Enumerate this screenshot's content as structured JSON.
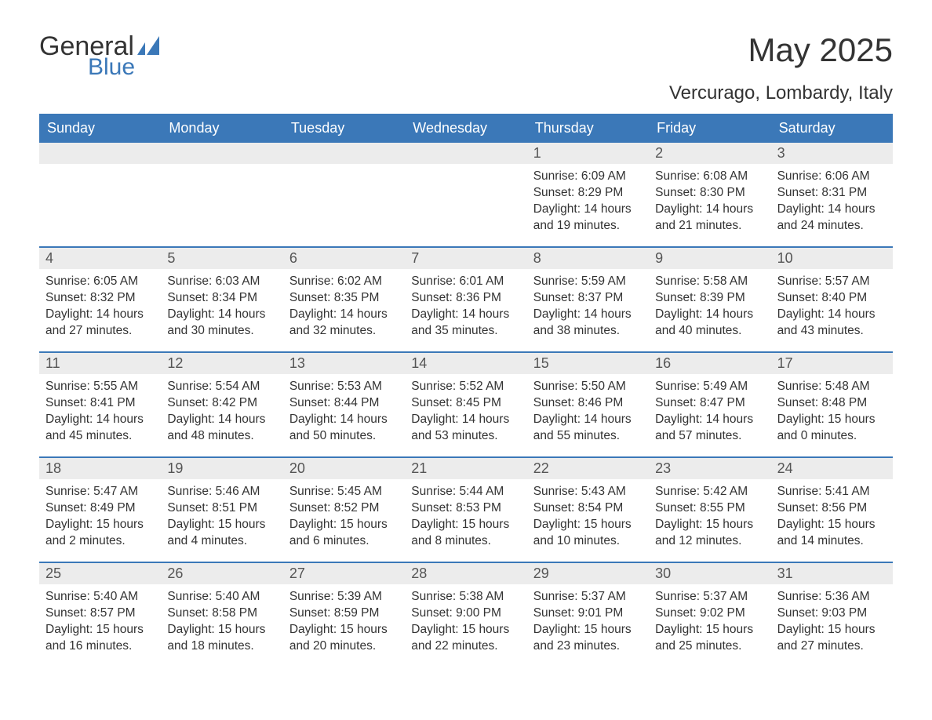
{
  "logo": {
    "main": "General",
    "sub": "Blue"
  },
  "title": "May 2025",
  "subtitle": "Vercurago, Lombardy, Italy",
  "colors": {
    "header_bg": "#3b78b8",
    "header_text": "#ffffff",
    "daynum_bg": "#ececec",
    "daynum_text": "#555555",
    "body_text": "#333333",
    "divider": "#3b78b8",
    "page_bg": "#ffffff"
  },
  "day_names": [
    "Sunday",
    "Monday",
    "Tuesday",
    "Wednesday",
    "Thursday",
    "Friday",
    "Saturday"
  ],
  "weeks": [
    [
      null,
      null,
      null,
      null,
      {
        "n": "1",
        "sunrise": "6:09 AM",
        "sunset": "8:29 PM",
        "daylight": "14 hours and 19 minutes."
      },
      {
        "n": "2",
        "sunrise": "6:08 AM",
        "sunset": "8:30 PM",
        "daylight": "14 hours and 21 minutes."
      },
      {
        "n": "3",
        "sunrise": "6:06 AM",
        "sunset": "8:31 PM",
        "daylight": "14 hours and 24 minutes."
      }
    ],
    [
      {
        "n": "4",
        "sunrise": "6:05 AM",
        "sunset": "8:32 PM",
        "daylight": "14 hours and 27 minutes."
      },
      {
        "n": "5",
        "sunrise": "6:03 AM",
        "sunset": "8:34 PM",
        "daylight": "14 hours and 30 minutes."
      },
      {
        "n": "6",
        "sunrise": "6:02 AM",
        "sunset": "8:35 PM",
        "daylight": "14 hours and 32 minutes."
      },
      {
        "n": "7",
        "sunrise": "6:01 AM",
        "sunset": "8:36 PM",
        "daylight": "14 hours and 35 minutes."
      },
      {
        "n": "8",
        "sunrise": "5:59 AM",
        "sunset": "8:37 PM",
        "daylight": "14 hours and 38 minutes."
      },
      {
        "n": "9",
        "sunrise": "5:58 AM",
        "sunset": "8:39 PM",
        "daylight": "14 hours and 40 minutes."
      },
      {
        "n": "10",
        "sunrise": "5:57 AM",
        "sunset": "8:40 PM",
        "daylight": "14 hours and 43 minutes."
      }
    ],
    [
      {
        "n": "11",
        "sunrise": "5:55 AM",
        "sunset": "8:41 PM",
        "daylight": "14 hours and 45 minutes."
      },
      {
        "n": "12",
        "sunrise": "5:54 AM",
        "sunset": "8:42 PM",
        "daylight": "14 hours and 48 minutes."
      },
      {
        "n": "13",
        "sunrise": "5:53 AM",
        "sunset": "8:44 PM",
        "daylight": "14 hours and 50 minutes."
      },
      {
        "n": "14",
        "sunrise": "5:52 AM",
        "sunset": "8:45 PM",
        "daylight": "14 hours and 53 minutes."
      },
      {
        "n": "15",
        "sunrise": "5:50 AM",
        "sunset": "8:46 PM",
        "daylight": "14 hours and 55 minutes."
      },
      {
        "n": "16",
        "sunrise": "5:49 AM",
        "sunset": "8:47 PM",
        "daylight": "14 hours and 57 minutes."
      },
      {
        "n": "17",
        "sunrise": "5:48 AM",
        "sunset": "8:48 PM",
        "daylight": "15 hours and 0 minutes."
      }
    ],
    [
      {
        "n": "18",
        "sunrise": "5:47 AM",
        "sunset": "8:49 PM",
        "daylight": "15 hours and 2 minutes."
      },
      {
        "n": "19",
        "sunrise": "5:46 AM",
        "sunset": "8:51 PM",
        "daylight": "15 hours and 4 minutes."
      },
      {
        "n": "20",
        "sunrise": "5:45 AM",
        "sunset": "8:52 PM",
        "daylight": "15 hours and 6 minutes."
      },
      {
        "n": "21",
        "sunrise": "5:44 AM",
        "sunset": "8:53 PM",
        "daylight": "15 hours and 8 minutes."
      },
      {
        "n": "22",
        "sunrise": "5:43 AM",
        "sunset": "8:54 PM",
        "daylight": "15 hours and 10 minutes."
      },
      {
        "n": "23",
        "sunrise": "5:42 AM",
        "sunset": "8:55 PM",
        "daylight": "15 hours and 12 minutes."
      },
      {
        "n": "24",
        "sunrise": "5:41 AM",
        "sunset": "8:56 PM",
        "daylight": "15 hours and 14 minutes."
      }
    ],
    [
      {
        "n": "25",
        "sunrise": "5:40 AM",
        "sunset": "8:57 PM",
        "daylight": "15 hours and 16 minutes."
      },
      {
        "n": "26",
        "sunrise": "5:40 AM",
        "sunset": "8:58 PM",
        "daylight": "15 hours and 18 minutes."
      },
      {
        "n": "27",
        "sunrise": "5:39 AM",
        "sunset": "8:59 PM",
        "daylight": "15 hours and 20 minutes."
      },
      {
        "n": "28",
        "sunrise": "5:38 AM",
        "sunset": "9:00 PM",
        "daylight": "15 hours and 22 minutes."
      },
      {
        "n": "29",
        "sunrise": "5:37 AM",
        "sunset": "9:01 PM",
        "daylight": "15 hours and 23 minutes."
      },
      {
        "n": "30",
        "sunrise": "5:37 AM",
        "sunset": "9:02 PM",
        "daylight": "15 hours and 25 minutes."
      },
      {
        "n": "31",
        "sunrise": "5:36 AM",
        "sunset": "9:03 PM",
        "daylight": "15 hours and 27 minutes."
      }
    ]
  ],
  "labels": {
    "sunrise": "Sunrise:",
    "sunset": "Sunset:",
    "daylight": "Daylight:"
  }
}
